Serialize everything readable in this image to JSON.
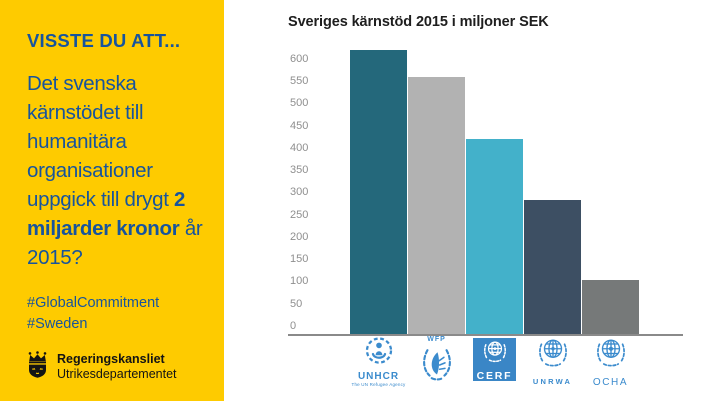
{
  "left_panel": {
    "bg_color": "#fecb00",
    "text_color": "#17549d",
    "heading": "VISSTE DU ATT...",
    "body": {
      "before": "Det svenska kärnstödet till humanitära organisationer uppgick till drygt ",
      "bold": "2 miljarder kronor",
      "after": " år 2015?"
    },
    "hashtags": [
      "#GlobalCommitment",
      "#Sweden"
    ],
    "gov_logo": {
      "line1": "Regeringskansliet",
      "line2": "Utrikesdepartementet",
      "emblem_color": "#141414"
    }
  },
  "chart_data": {
    "type": "bar",
    "title": "Sveriges kärnstöd 2015 i miljoner SEK",
    "categories": [
      "UNHCR",
      "WFP",
      "CERF",
      "UNRWA",
      "OCHA"
    ],
    "values": [
      620,
      560,
      420,
      285,
      105
    ],
    "bar_colors": [
      "#24687b",
      "#b2b2b2",
      "#43b1ca",
      "#3d4f63",
      "#767979"
    ],
    "xlabel": "",
    "ylabel": "",
    "ylim": [
      0,
      600
    ],
    "ytick_step": 50,
    "grid": false,
    "legend": "none",
    "axis_color": "#8a8a8a",
    "tick_label_color": "#8f8f8f",
    "title_color": "#1e1e1e"
  },
  "logos": {
    "un_blue": "#3b8bcd",
    "cerf_bg": "#3a86c6",
    "unhcr": {
      "label": "UNHCR",
      "sublabel": "The UN Refugee Agency"
    },
    "wfp": {
      "label": "WFP"
    },
    "cerf": {
      "label": "CERF"
    },
    "unrwa": {
      "label": "UNRWA"
    },
    "ocha": {
      "label": "OCHA"
    }
  }
}
